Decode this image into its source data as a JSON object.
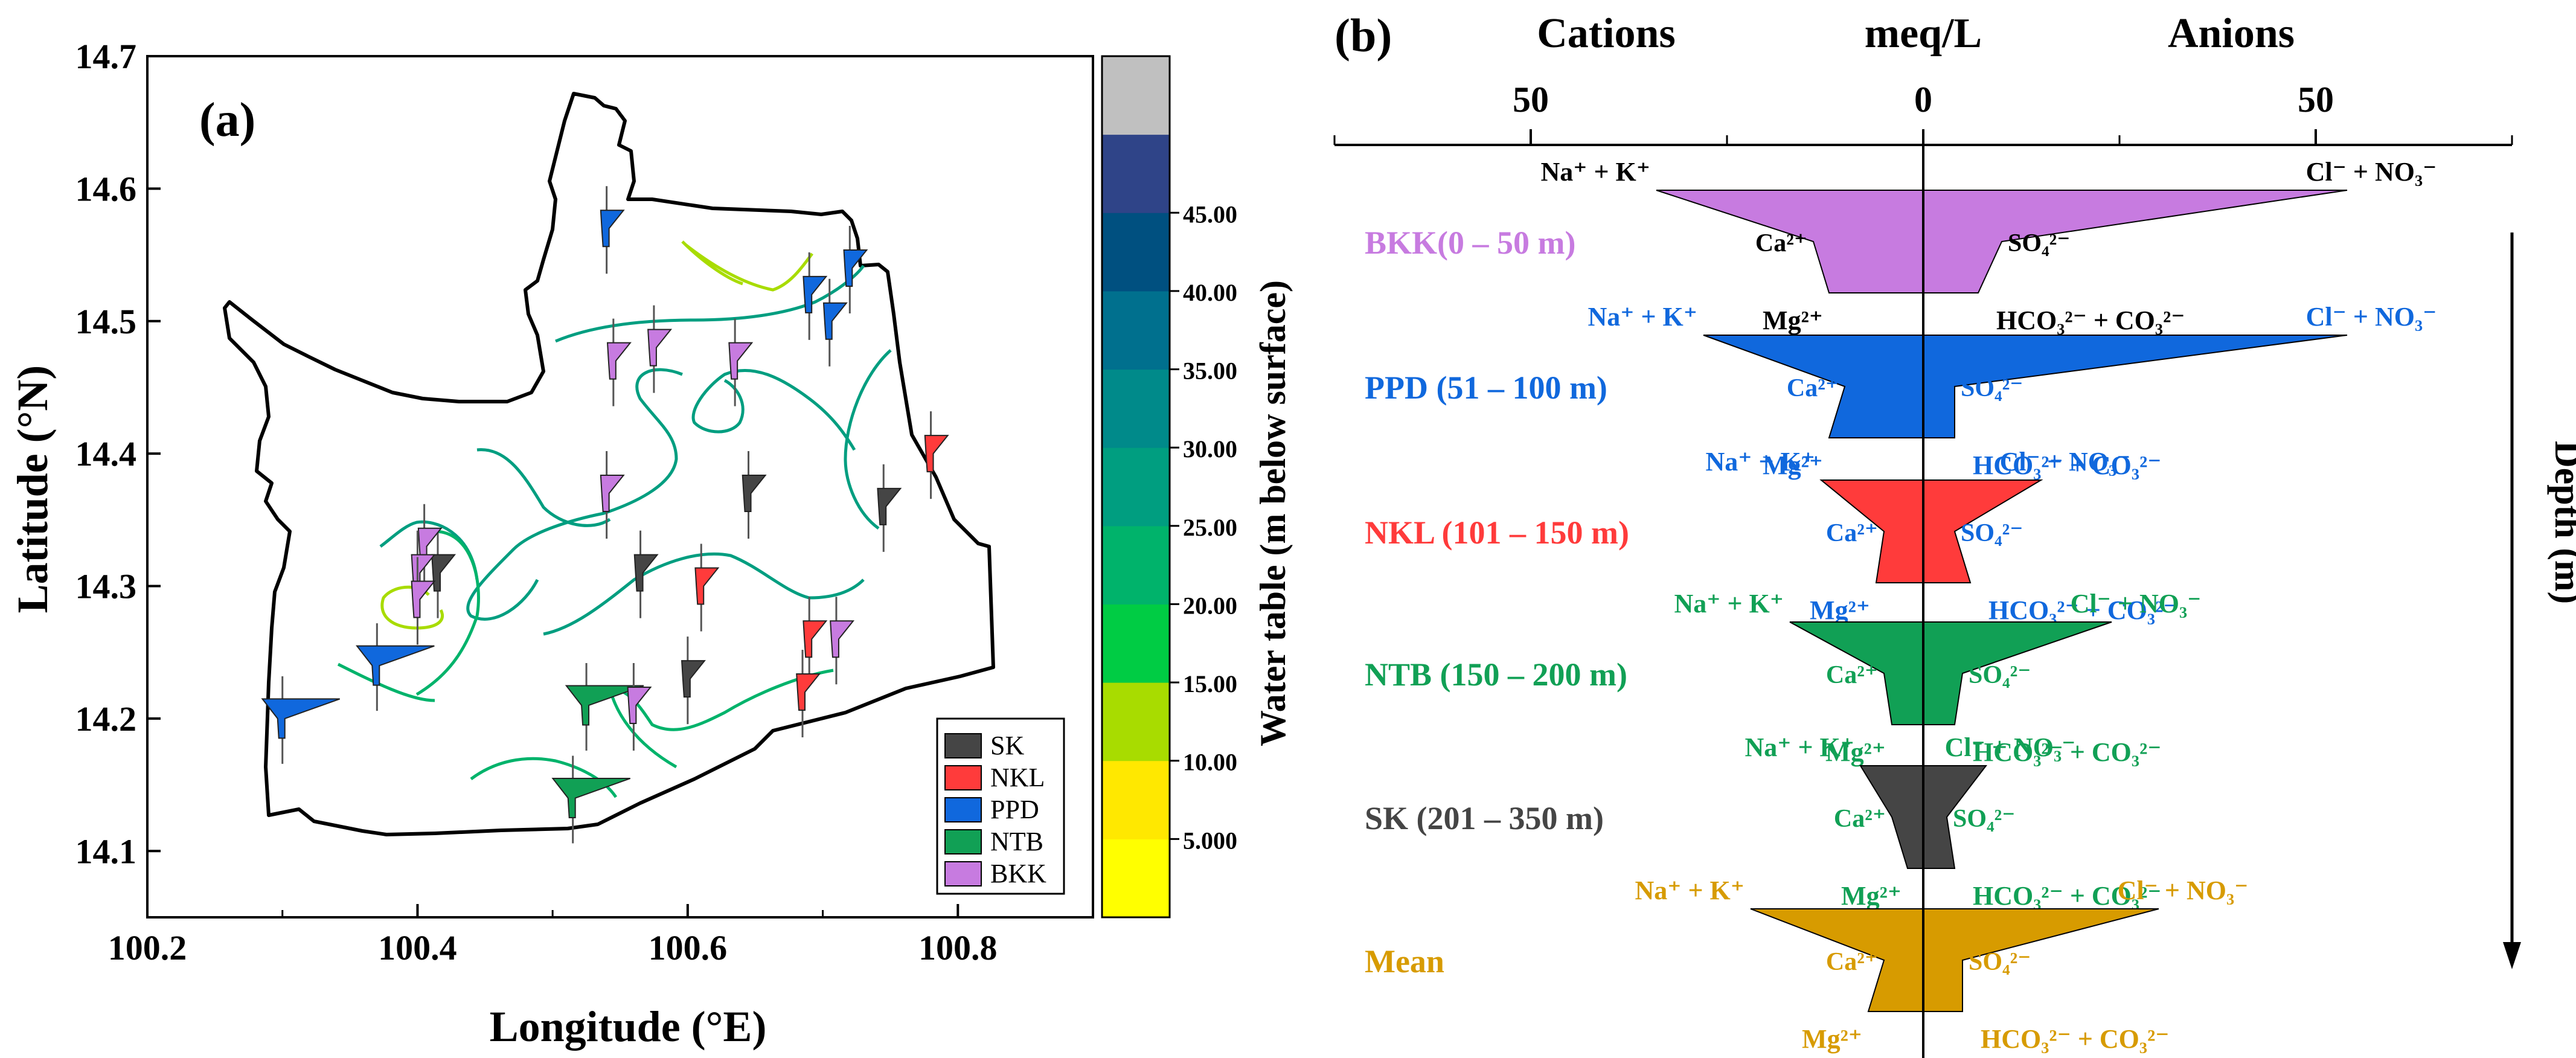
{
  "panel_a": {
    "label": "(a)",
    "colorbar_title": "Water table (m below surface)",
    "colorbar_ticks": [
      "5.000",
      "10.00",
      "15.00",
      "20.00",
      "25.00",
      "30.00",
      "35.00",
      "40.00",
      "45.00"
    ],
    "colorbar_colors": [
      "#ffff00",
      "#ffe800",
      "#a8dc00",
      "#00cc44",
      "#00b36b",
      "#009e80",
      "#008a8a",
      "#00708e",
      "#005080",
      "#2f4488",
      "#c0c0c0"
    ],
    "legend": [
      {
        "name": "SK",
        "color": "#454545"
      },
      {
        "name": "NKL",
        "color": "#ff3b3b"
      },
      {
        "name": "PPD",
        "color": "#1068dd"
      },
      {
        "name": "NTB",
        "color": "#11a055"
      },
      {
        "name": "BKK",
        "color": "#c77be0"
      }
    ]
  },
  "panel_b": {
    "label": "(b)",
    "header_cations": "Cations",
    "header_unit": "meq/L",
    "header_anions": "Anions",
    "depth_label": "Depth (m)",
    "scale_ticks": [
      "50",
      "0",
      "50"
    ],
    "ion_labels": {
      "na_k": "Na⁺ + K⁺",
      "cl_no3": "Cl⁻ + NO₃⁻",
      "ca": "Ca²⁺",
      "so4": "SO₄²⁻",
      "mg": "Mg²⁺",
      "hco3": "HCO₃²⁻ + CO₃²⁻"
    },
    "groups": [
      {
        "name": "BKK(0 – 50 m)",
        "color": "#c77be0",
        "label_color": "#c77be0",
        "ion_color": "#000000"
      },
      {
        "name": "PPD (51 – 100 m)",
        "color": "#1068dd",
        "label_color": "#1068dd",
        "ion_color": "#1068dd"
      },
      {
        "name": "NKL (101 – 150 m)",
        "color": "#ff3b3b",
        "label_color": "#ff3b3b",
        "ion_color": "#1068dd"
      },
      {
        "name": "NTB (150 – 200 m)",
        "color": "#11a055",
        "label_color": "#11a055",
        "ion_color": "#11a055"
      },
      {
        "name": "SK (201 – 350 m)",
        "color": "#454545",
        "label_color": "#454545",
        "ion_color": "#11a055"
      },
      {
        "name": "Mean",
        "color": "#d79b00",
        "label_color": "#d79b00",
        "ion_color": "#d79b00"
      }
    ]
  },
  "chart_data": [
    {
      "type": "scatter",
      "title": "(a)",
      "xlabel": "Longitude (°E)",
      "ylabel": "Latitude (°N)",
      "xlim": [
        100.2,
        100.9
      ],
      "ylim": [
        14.05,
        14.7
      ],
      "xticks": [
        "100.2",
        "100.4",
        "100.6",
        "100.8"
      ],
      "yticks": [
        "14.1",
        "14.2",
        "14.3",
        "14.4",
        "14.5",
        "14.6",
        "14.7"
      ],
      "series": [
        {
          "name": "SK",
          "points": [
            [
              100.645,
              14.37
            ],
            [
              100.745,
              14.36
            ],
            [
              100.565,
              14.31
            ],
            [
              100.6,
              14.23
            ],
            [
              100.415,
              14.31
            ]
          ]
        },
        {
          "name": "NKL",
          "points": [
            [
              100.78,
              14.4
            ],
            [
              100.69,
              14.26
            ],
            [
              100.685,
              14.22
            ],
            [
              100.61,
              14.3
            ]
          ]
        },
        {
          "name": "PPD",
          "points": [
            [
              100.54,
              14.57
            ],
            [
              100.69,
              14.52
            ],
            [
              100.72,
              14.54
            ],
            [
              100.705,
              14.5
            ],
            [
              100.37,
              14.24
            ],
            [
              100.3,
              14.2
            ]
          ]
        },
        {
          "name": "NTB",
          "points": [
            [
              100.525,
              14.21
            ],
            [
              100.515,
              14.14
            ]
          ]
        },
        {
          "name": "BKK",
          "points": [
            [
              100.545,
              14.47
            ],
            [
              100.575,
              14.48
            ],
            [
              100.635,
              14.47
            ],
            [
              100.54,
              14.37
            ],
            [
              100.405,
              14.33
            ],
            [
              100.4,
              14.31
            ],
            [
              100.4,
              14.29
            ],
            [
              100.56,
              14.21
            ],
            [
              100.71,
              14.26
            ]
          ]
        }
      ]
    },
    {
      "type": "area",
      "title": "(b)",
      "xlabel": "meq/L",
      "ylabel": "Depth (m)",
      "xlim": [
        -75,
        75
      ],
      "xticks": [
        -50,
        0,
        50
      ],
      "note": "Stiff diagrams, cations plotted left (negative), anions right; values in meq/L",
      "series": [
        {
          "name": "BKK",
          "na_k": 34,
          "ca": 14,
          "mg": 12,
          "cl_no3": 54,
          "so4": 10,
          "hco3": 7
        },
        {
          "name": "PPD",
          "na_k": 28,
          "ca": 10,
          "mg": 12,
          "cl_no3": 54,
          "so4": 4,
          "hco3": 4
        },
        {
          "name": "NKL",
          "na_k": 13,
          "ca": 5,
          "mg": 6,
          "cl_no3": 15,
          "so4": 4,
          "hco3": 6
        },
        {
          "name": "NTB",
          "na_k": 17,
          "ca": 5,
          "mg": 4,
          "cl_no3": 24,
          "so4": 5,
          "hco3": 4
        },
        {
          "name": "SK",
          "na_k": 8,
          "ca": 4,
          "mg": 2,
          "cl_no3": 8,
          "so4": 3,
          "hco3": 4
        },
        {
          "name": "Mean",
          "na_k": 22,
          "ca": 5,
          "mg": 7,
          "cl_no3": 30,
          "so4": 5,
          "hco3": 5
        }
      ]
    }
  ]
}
